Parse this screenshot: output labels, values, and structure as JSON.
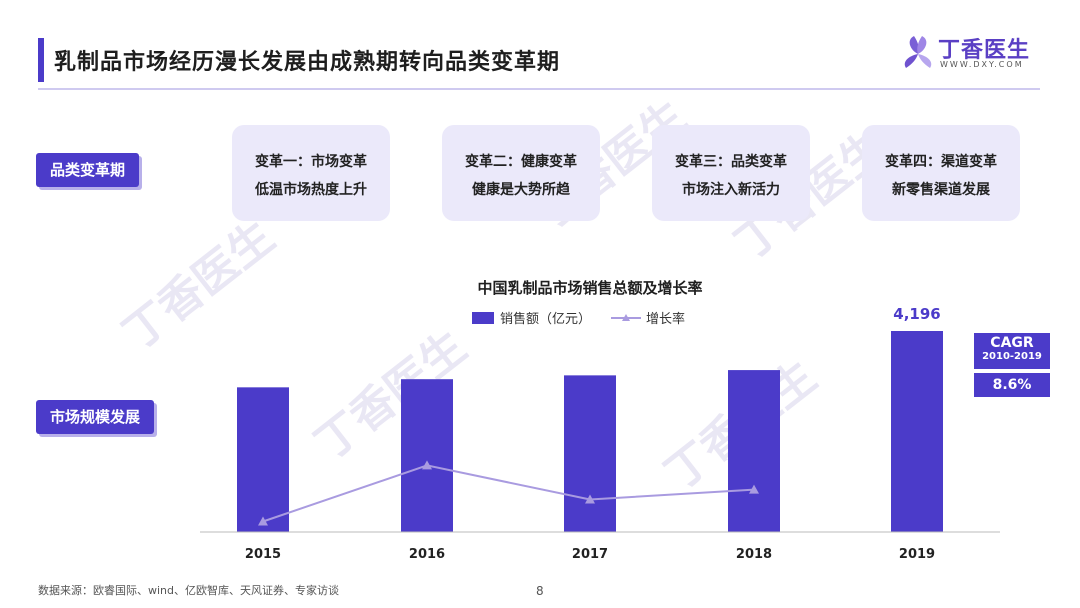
{
  "header": {
    "title": "乳制品市场经历漫长发展由成熟期转向品类变革期",
    "logo_text": "丁香医生",
    "logo_url": "WWW.DXY.COM"
  },
  "side_tags": {
    "stage": "品类变革期",
    "scale": "市场规模发展"
  },
  "stages": [
    {
      "line1": "变革一：市场变革",
      "line2": "低温市场热度上升"
    },
    {
      "line1": "变革二：健康变革",
      "line2": "健康是大势所趋"
    },
    {
      "line1": "变革三：品类变革",
      "line2": "市场注入新活力"
    },
    {
      "line1": "变革四：渠道变革",
      "line2": "新零售渠道发展"
    }
  ],
  "chart_data": {
    "type": "bar",
    "title": "中国乳制品市场销售总额及增长率",
    "categories": [
      "2015",
      "2016",
      "2017",
      "2018",
      "2019"
    ],
    "series": [
      {
        "name": "销售额（亿元）",
        "type": "bar",
        "values": [
          3020,
          3190,
          3270,
          3380,
          4196
        ],
        "labels": [
          "",
          "",
          "",
          "",
          "4,196"
        ]
      },
      {
        "name": "增长率",
        "type": "line",
        "values": [
          0.5,
          5.6,
          2.5,
          3.4,
          null
        ]
      }
    ],
    "legend_position": "top-center",
    "grid": false,
    "colors": {
      "bar": "#4b3bc9",
      "line": "#a99be0"
    }
  },
  "cagr": {
    "label": "CAGR",
    "period": "2010-2019",
    "value": "8.6%"
  },
  "footer": {
    "source": "数据来源：欧睿国际、wind、亿欧智库、天风证券、专家访谈",
    "page": "8"
  },
  "watermark_text": "丁香医生"
}
